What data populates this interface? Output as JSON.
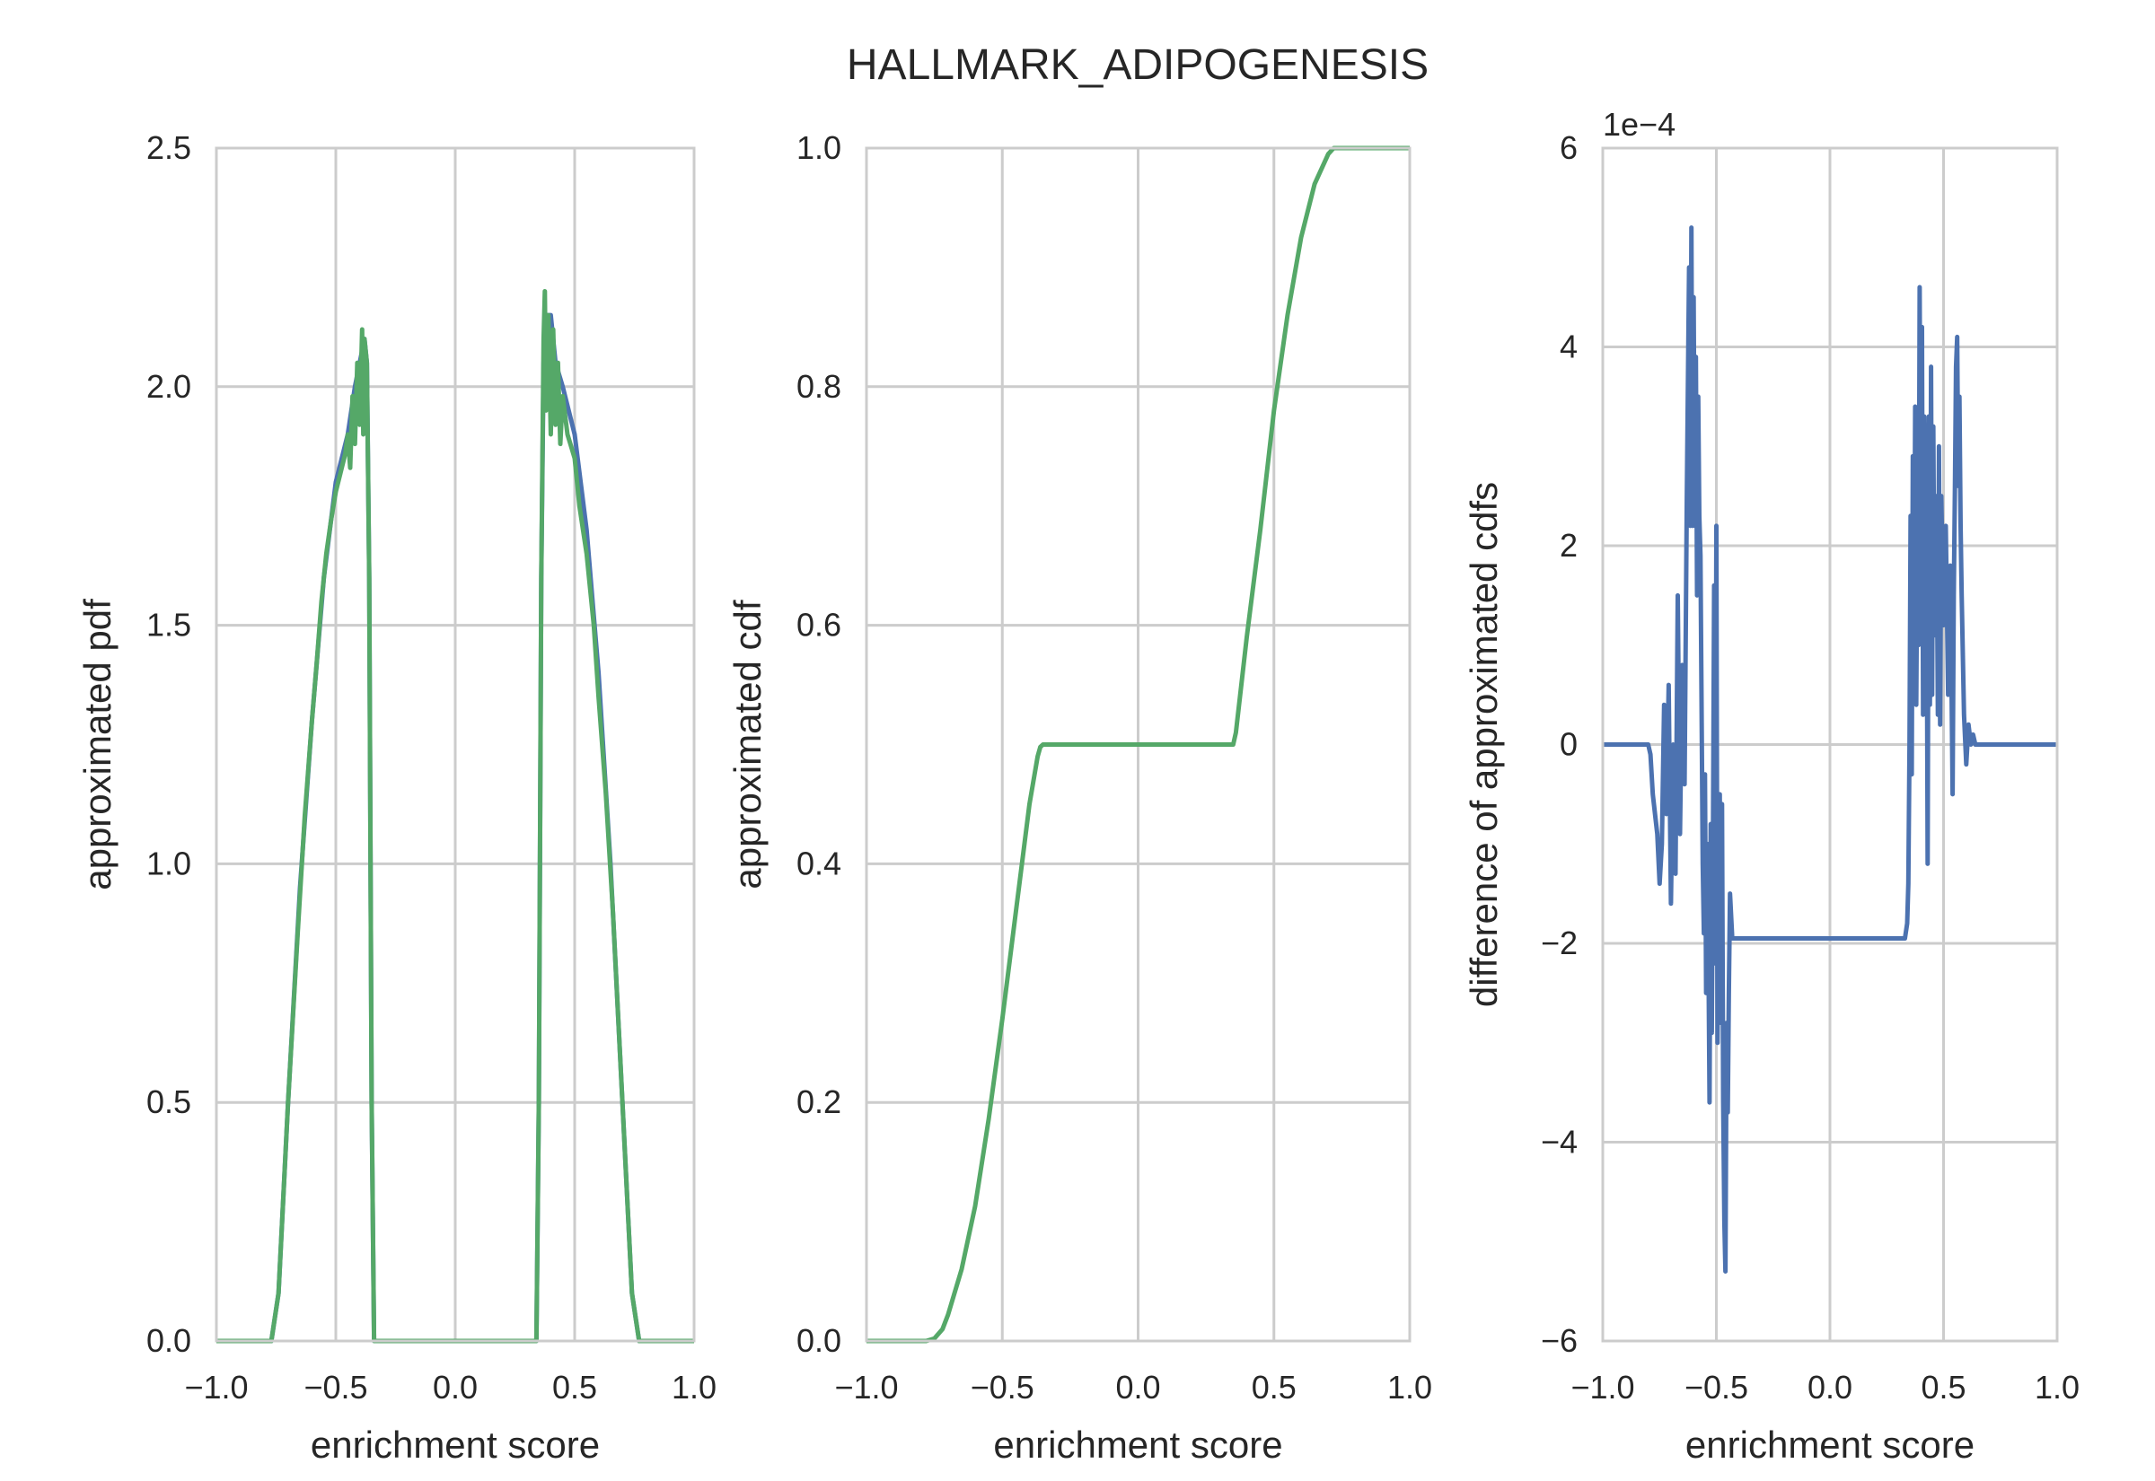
{
  "figure_title": "HALLMARK_ADIPOGENESIS",
  "chart_data": [
    {
      "type": "line",
      "xlabel": "enrichment score",
      "ylabel": "approximated pdf",
      "xlim": [
        -1.0,
        1.0
      ],
      "ylim": [
        0.0,
        2.5
      ],
      "xticks": [
        "−1.0",
        "−0.5",
        "0.0",
        "0.5",
        "1.0"
      ],
      "yticks": [
        "0.0",
        "0.5",
        "1.0",
        "1.5",
        "2.0",
        "2.5"
      ],
      "grid": true,
      "legend": "none",
      "series": [
        {
          "color": "#4c72b0",
          "points": [
            [
              -1.0,
              0.0
            ],
            [
              -0.8,
              0.0
            ],
            [
              -0.77,
              0.0
            ],
            [
              -0.74,
              0.1
            ],
            [
              -0.7,
              0.5
            ],
            [
              -0.65,
              0.95
            ],
            [
              -0.6,
              1.3
            ],
            [
              -0.55,
              1.6
            ],
            [
              -0.5,
              1.8
            ],
            [
              -0.45,
              1.9
            ],
            [
              -0.42,
              2.0
            ],
            [
              -0.4,
              2.05
            ],
            [
              -0.38,
              2.1
            ],
            [
              -0.37,
              2.05
            ],
            [
              -0.36,
              1.6
            ],
            [
              -0.35,
              0.5
            ],
            [
              -0.34,
              0.0
            ],
            [
              0.34,
              0.0
            ],
            [
              0.35,
              0.5
            ],
            [
              0.36,
              1.6
            ],
            [
              0.37,
              2.05
            ],
            [
              0.38,
              2.15
            ],
            [
              0.4,
              2.15
            ],
            [
              0.42,
              2.05
            ],
            [
              0.45,
              2.0
            ],
            [
              0.5,
              1.9
            ],
            [
              0.55,
              1.7
            ],
            [
              0.6,
              1.4
            ],
            [
              0.65,
              1.0
            ],
            [
              0.7,
              0.5
            ],
            [
              0.74,
              0.1
            ],
            [
              0.77,
              0.0
            ],
            [
              0.8,
              0.0
            ],
            [
              1.0,
              0.0
            ]
          ]
        },
        {
          "color": "#55a868",
          "points": [
            [
              -1.0,
              0.0
            ],
            [
              -0.8,
              0.0
            ],
            [
              -0.77,
              0.0
            ],
            [
              -0.74,
              0.1
            ],
            [
              -0.7,
              0.5
            ],
            [
              -0.66,
              0.85
            ],
            [
              -0.63,
              1.1
            ],
            [
              -0.6,
              1.3
            ],
            [
              -0.58,
              1.42
            ],
            [
              -0.56,
              1.55
            ],
            [
              -0.54,
              1.65
            ],
            [
              -0.52,
              1.72
            ],
            [
              -0.5,
              1.78
            ],
            [
              -0.48,
              1.82
            ],
            [
              -0.46,
              1.86
            ],
            [
              -0.45,
              1.9
            ],
            [
              -0.44,
              1.83
            ],
            [
              -0.43,
              1.98
            ],
            [
              -0.42,
              1.88
            ],
            [
              -0.41,
              2.05
            ],
            [
              -0.4,
              1.92
            ],
            [
              -0.39,
              2.12
            ],
            [
              -0.385,
              1.9
            ],
            [
              -0.38,
              2.1
            ],
            [
              -0.37,
              2.05
            ],
            [
              -0.36,
              1.6
            ],
            [
              -0.35,
              0.5
            ],
            [
              -0.34,
              0.0
            ],
            [
              0.34,
              0.0
            ],
            [
              0.35,
              0.5
            ],
            [
              0.36,
              1.6
            ],
            [
              0.37,
              2.1
            ],
            [
              0.375,
              2.2
            ],
            [
              0.38,
              1.95
            ],
            [
              0.39,
              2.15
            ],
            [
              0.4,
              1.9
            ],
            [
              0.41,
              2.12
            ],
            [
              0.42,
              1.92
            ],
            [
              0.43,
              2.05
            ],
            [
              0.44,
              1.88
            ],
            [
              0.45,
              1.98
            ],
            [
              0.47,
              1.9
            ],
            [
              0.5,
              1.85
            ],
            [
              0.52,
              1.75
            ],
            [
              0.55,
              1.65
            ],
            [
              0.58,
              1.5
            ],
            [
              0.6,
              1.35
            ],
            [
              0.63,
              1.15
            ],
            [
              0.66,
              0.9
            ],
            [
              0.7,
              0.5
            ],
            [
              0.74,
              0.1
            ],
            [
              0.77,
              0.0
            ],
            [
              0.8,
              0.0
            ],
            [
              1.0,
              0.0
            ]
          ]
        }
      ]
    },
    {
      "type": "line",
      "xlabel": "enrichment score",
      "ylabel": "approximated cdf",
      "xlim": [
        -1.0,
        1.0
      ],
      "ylim": [
        0.0,
        1.0
      ],
      "xticks": [
        "−1.0",
        "−0.5",
        "0.0",
        "0.5",
        "1.0"
      ],
      "yticks": [
        "0.0",
        "0.2",
        "0.4",
        "0.6",
        "0.8",
        "1.0"
      ],
      "grid": true,
      "legend": "none",
      "series": [
        {
          "color": "#55a868",
          "points": [
            [
              -1.0,
              0.0
            ],
            [
              -0.78,
              0.0
            ],
            [
              -0.75,
              0.002
            ],
            [
              -0.72,
              0.01
            ],
            [
              -0.7,
              0.022
            ],
            [
              -0.65,
              0.06
            ],
            [
              -0.6,
              0.113
            ],
            [
              -0.55,
              0.186
            ],
            [
              -0.5,
              0.27
            ],
            [
              -0.45,
              0.36
            ],
            [
              -0.4,
              0.45
            ],
            [
              -0.37,
              0.49
            ],
            [
              -0.36,
              0.498
            ],
            [
              -0.35,
              0.5
            ],
            [
              0.35,
              0.5
            ],
            [
              0.36,
              0.51
            ],
            [
              0.4,
              0.59
            ],
            [
              0.45,
              0.68
            ],
            [
              0.5,
              0.78
            ],
            [
              0.55,
              0.86
            ],
            [
              0.6,
              0.925
            ],
            [
              0.65,
              0.97
            ],
            [
              0.7,
              0.995
            ],
            [
              0.72,
              1.0
            ],
            [
              1.0,
              1.0
            ]
          ]
        }
      ]
    },
    {
      "type": "line",
      "xlabel": "enrichment score",
      "ylabel": "difference of approximated cdfs",
      "xlim": [
        -1.0,
        1.0
      ],
      "ylim": [
        -6,
        6
      ],
      "y_scale_label": "1e−4",
      "xticks": [
        "−1.0",
        "−0.5",
        "0.0",
        "0.5",
        "1.0"
      ],
      "yticks": [
        "−6",
        "−4",
        "−2",
        "0",
        "2",
        "4",
        "6"
      ],
      "grid": true,
      "legend": "none",
      "series": [
        {
          "color": "#4c72b0",
          "points": [
            [
              -1.0,
              0.0
            ],
            [
              -0.8,
              0.0
            ],
            [
              -0.79,
              -0.1
            ],
            [
              -0.78,
              -0.5
            ],
            [
              -0.76,
              -0.9
            ],
            [
              -0.75,
              -1.4
            ],
            [
              -0.74,
              -1.0
            ],
            [
              -0.73,
              0.4
            ],
            [
              -0.72,
              -0.7
            ],
            [
              -0.71,
              0.6
            ],
            [
              -0.7,
              -1.6
            ],
            [
              -0.69,
              0.0
            ],
            [
              -0.68,
              -1.3
            ],
            [
              -0.67,
              1.5
            ],
            [
              -0.66,
              -0.9
            ],
            [
              -0.65,
              0.8
            ],
            [
              -0.64,
              -0.4
            ],
            [
              -0.63,
              2.5
            ],
            [
              -0.62,
              4.8
            ],
            [
              -0.615,
              2.2
            ],
            [
              -0.61,
              5.2
            ],
            [
              -0.605,
              2.2
            ],
            [
              -0.6,
              4.5
            ],
            [
              -0.595,
              2.2
            ],
            [
              -0.59,
              3.9
            ],
            [
              -0.585,
              1.5
            ],
            [
              -0.58,
              3.5
            ],
            [
              -0.575,
              2.3
            ],
            [
              -0.57,
              1.9
            ],
            [
              -0.56,
              -1.2
            ],
            [
              -0.555,
              -1.9
            ],
            [
              -0.55,
              -0.3
            ],
            [
              -0.545,
              -2.5
            ],
            [
              -0.54,
              -1.0
            ],
            [
              -0.535,
              -2.0
            ],
            [
              -0.53,
              -3.6
            ],
            [
              -0.525,
              -0.8
            ],
            [
              -0.52,
              -2.9
            ],
            [
              -0.515,
              -1.0
            ],
            [
              -0.51,
              1.6
            ],
            [
              -0.505,
              -2.2
            ],
            [
              -0.5,
              2.2
            ],
            [
              -0.495,
              -3.0
            ],
            [
              -0.49,
              -1.2
            ],
            [
              -0.485,
              -0.5
            ],
            [
              -0.48,
              -2.8
            ],
            [
              -0.475,
              -0.6
            ],
            [
              -0.47,
              -3.6
            ],
            [
              -0.465,
              -4.8
            ],
            [
              -0.46,
              -5.3
            ],
            [
              -0.455,
              -2.8
            ],
            [
              -0.45,
              -3.7
            ],
            [
              -0.445,
              -2.5
            ],
            [
              -0.44,
              -1.5
            ],
            [
              -0.43,
              -1.95
            ],
            [
              0.33,
              -1.95
            ],
            [
              0.34,
              -1.8
            ],
            [
              0.345,
              -1.4
            ],
            [
              0.35,
              0.0
            ],
            [
              0.355,
              2.3
            ],
            [
              0.36,
              -0.3
            ],
            [
              0.365,
              2.9
            ],
            [
              0.37,
              0.8
            ],
            [
              0.375,
              3.4
            ],
            [
              0.38,
              0.4
            ],
            [
              0.385,
              2.2
            ],
            [
              0.39,
              1.0
            ],
            [
              0.395,
              4.6
            ],
            [
              0.4,
              1.5
            ],
            [
              0.405,
              4.2
            ],
            [
              0.41,
              0.3
            ],
            [
              0.415,
              3.3
            ],
            [
              0.42,
              2.0
            ],
            [
              0.425,
              2.4
            ],
            [
              0.43,
              -1.2
            ],
            [
              0.435,
              3.3
            ],
            [
              0.44,
              0.4
            ],
            [
              0.445,
              3.8
            ],
            [
              0.45,
              0.5
            ],
            [
              0.455,
              3.2
            ],
            [
              0.46,
              1.1
            ],
            [
              0.465,
              2.5
            ],
            [
              0.47,
              2.1
            ],
            [
              0.475,
              0.3
            ],
            [
              0.48,
              3.0
            ],
            [
              0.485,
              0.2
            ],
            [
              0.49,
              2.5
            ],
            [
              0.5,
              1.2
            ],
            [
              0.51,
              2.2
            ],
            [
              0.52,
              0.5
            ],
            [
              0.53,
              1.8
            ],
            [
              0.54,
              -0.5
            ],
            [
              0.545,
              1.5
            ],
            [
              0.55,
              2.6
            ],
            [
              0.555,
              3.8
            ],
            [
              0.56,
              4.1
            ],
            [
              0.565,
              2.6
            ],
            [
              0.57,
              3.5
            ],
            [
              0.575,
              2.2
            ],
            [
              0.58,
              1.5
            ],
            [
              0.59,
              0.3
            ],
            [
              0.6,
              -0.2
            ],
            [
              0.61,
              0.2
            ],
            [
              0.62,
              0.0
            ],
            [
              0.63,
              0.1
            ],
            [
              0.64,
              0.0
            ],
            [
              1.0,
              0.0
            ]
          ]
        }
      ]
    }
  ]
}
